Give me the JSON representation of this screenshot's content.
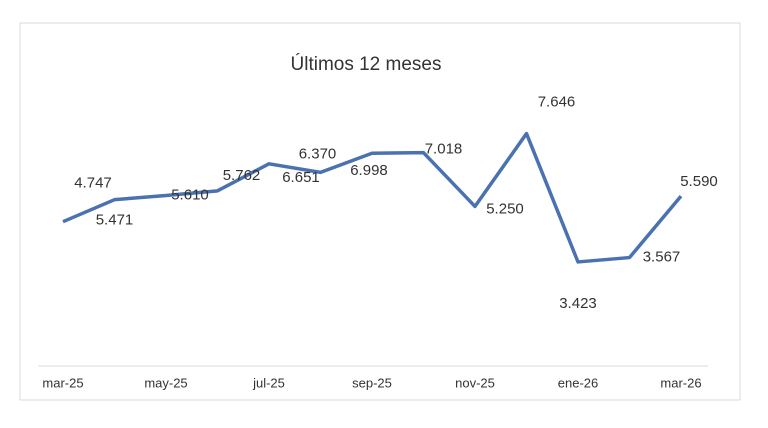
{
  "chart_data": {
    "type": "line",
    "title": "Últimos 12 meses",
    "categories": [
      "mar-25",
      null,
      "may-25",
      null,
      "jul-25",
      null,
      "sep-25",
      null,
      "nov-25",
      null,
      "ene-26",
      null,
      "mar-26"
    ],
    "series": [
      {
        "color": "#4a72b0",
        "values": [
          4.747,
          5.471,
          5.61,
          5.762,
          6.651,
          6.37,
          6.998,
          7.018,
          5.25,
          7.646,
          3.423,
          3.567,
          5.59
        ],
        "value_labels": [
          "4.747",
          "5.471",
          "5.610",
          "5.762",
          "6.651",
          "6.370",
          "6.998",
          "7.018",
          "5.250",
          "7.646",
          "3.423",
          "3.567",
          "5.590"
        ]
      }
    ]
  }
}
